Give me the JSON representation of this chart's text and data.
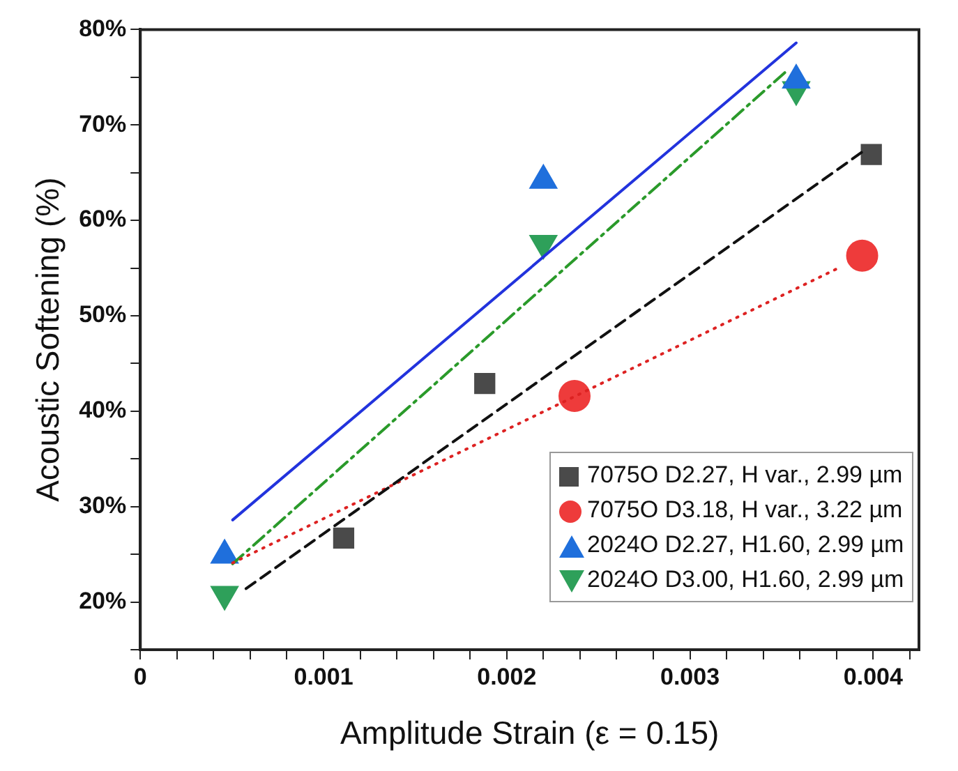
{
  "chart_data": {
    "type": "scatter",
    "xlabel": "Amplitude Strain (ε = 0.15)",
    "ylabel": "Acoustic Softening (%)",
    "xlim": [
      0,
      0.00425
    ],
    "ylim": [
      15,
      80
    ],
    "xticks": [
      0,
      {
        "value": 0.0002,
        "label": null
      },
      {
        "value": 0.0004,
        "label": null
      },
      {
        "value": 0.0006,
        "label": null
      },
      {
        "value": 0.0008,
        "label": null
      },
      0.001,
      {
        "value": 0.0012,
        "label": null
      },
      {
        "value": 0.0014,
        "label": null
      },
      {
        "value": 0.0016,
        "label": null
      },
      {
        "value": 0.0018,
        "label": null
      },
      0.002,
      {
        "value": 0.0022,
        "label": null
      },
      {
        "value": 0.0024,
        "label": null
      },
      {
        "value": 0.0026,
        "label": null
      },
      {
        "value": 0.0028,
        "label": null
      },
      0.003,
      {
        "value": 0.0032,
        "label": null
      },
      {
        "value": 0.0034,
        "label": null
      },
      {
        "value": 0.0036,
        "label": null
      },
      {
        "value": 0.0038,
        "label": null
      },
      0.004,
      {
        "value": 0.0042,
        "label": null
      }
    ],
    "yticks": [
      {
        "value": 15,
        "label": null
      },
      {
        "value": 20,
        "label": "20%"
      },
      {
        "value": 25,
        "label": null
      },
      {
        "value": 30,
        "label": "30%"
      },
      {
        "value": 35,
        "label": null
      },
      {
        "value": 40,
        "label": "40%"
      },
      {
        "value": 45,
        "label": null
      },
      {
        "value": 50,
        "label": "50%"
      },
      {
        "value": 55,
        "label": null
      },
      {
        "value": 60,
        "label": "60%"
      },
      {
        "value": 65,
        "label": null
      },
      {
        "value": 70,
        "label": "70%"
      },
      {
        "value": 75,
        "label": null
      },
      {
        "value": 80,
        "label": "80%"
      }
    ],
    "grid": false,
    "legend": "bottom right",
    "series": [
      {
        "name": "7075O D2.27, H var., 2.99 µm",
        "type": "scatter",
        "marker": "square",
        "color": "#4a4a4a",
        "x": [
          0.00111,
          0.00188,
          0.00399
        ],
        "values": [
          26.7,
          42.9,
          66.9
        ]
      },
      {
        "name": "7075O D3.18, H var., 3.22 µm",
        "type": "scatter",
        "marker": "circle",
        "color": "#ee3b3b",
        "x": [
          0.00237,
          0.00394
        ],
        "values": [
          41.6,
          56.3
        ]
      },
      {
        "name": "2024O D2.27, H1.60, 2.99 µm",
        "type": "scatter",
        "marker": "triangle",
        "color": "#1f6fdc",
        "x": [
          0.00046,
          0.0022,
          0.00358
        ],
        "values": [
          24.9,
          64.2,
          74.7
        ]
      },
      {
        "name": "2024O D3.00, H1.60, 2.99 µm",
        "type": "scatter",
        "marker": "triangle-down",
        "color": "#2ea05a",
        "x": [
          0.00046,
          0.0022,
          0.00358
        ],
        "values": [
          20.8,
          57.6,
          73.7
        ]
      },
      {
        "type": "line",
        "line_style": "dashed",
        "color": "#111111",
        "x": [
          0.000577,
          0.00395
        ],
        "values": [
          21.4,
          67.3
        ]
      },
      {
        "type": "line",
        "line_style": "dotted",
        "color": "#dd2222",
        "x": [
          0.000504,
          0.00381
        ],
        "values": [
          24.1,
          55.0
        ]
      },
      {
        "type": "line",
        "line_style": "solid",
        "color": "#2233dd",
        "x": [
          0.000504,
          0.00358
        ],
        "values": [
          28.6,
          78.6
        ]
      },
      {
        "type": "line",
        "line_style": "dashdot",
        "color": "#2a9a2a",
        "x": [
          0.000504,
          0.00353
        ],
        "values": [
          24.0,
          75.7
        ]
      }
    ]
  }
}
